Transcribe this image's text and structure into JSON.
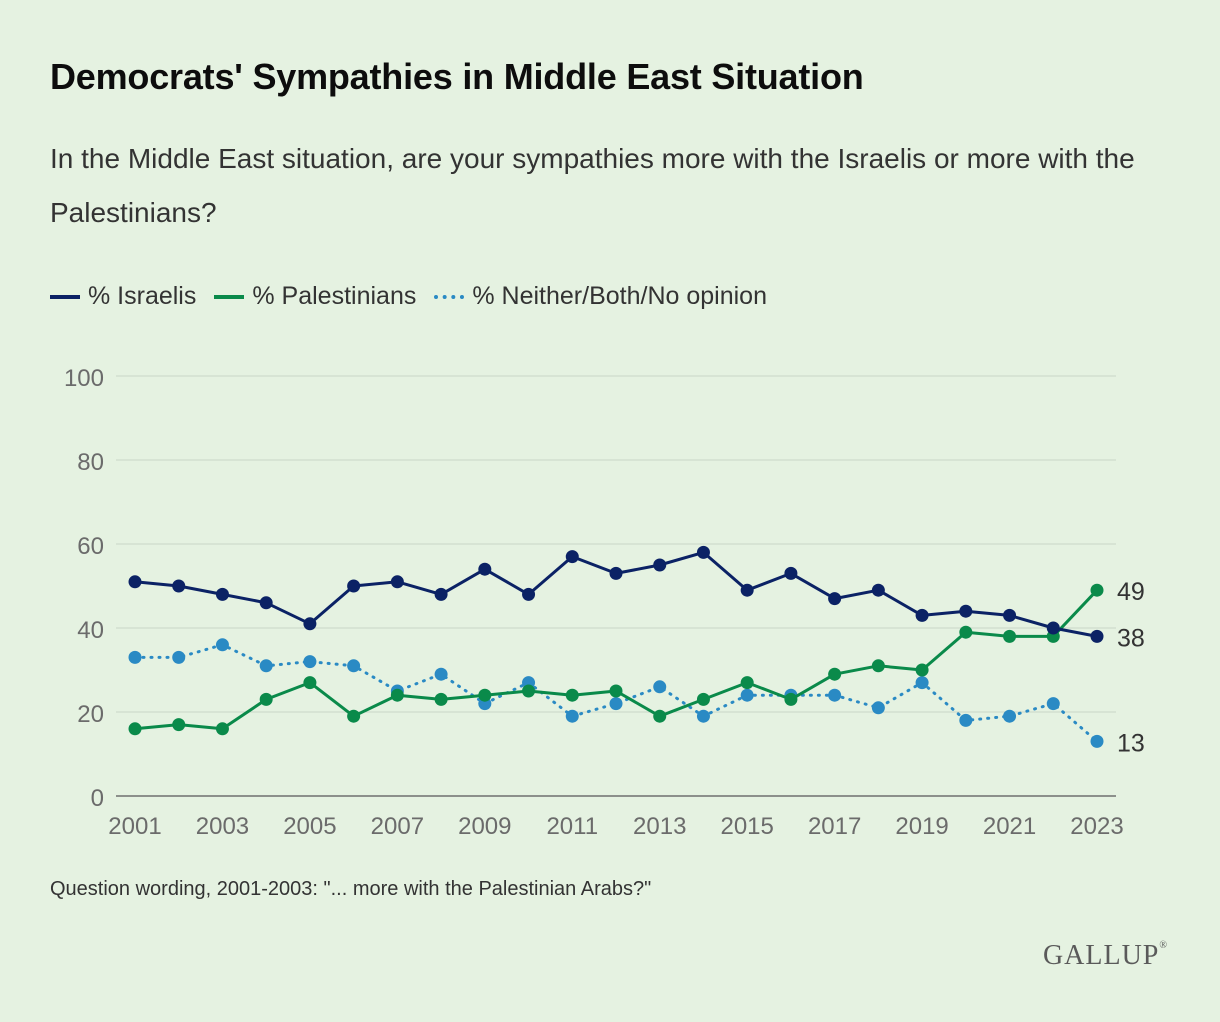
{
  "header": {
    "title": "Democrats' Sympathies in Middle East Situation",
    "subtitle": "In the Middle East situation, are your sympathies more with the Israelis or more with the Palestinians?"
  },
  "footer": {
    "note": "Question wording, 2001-2003: \"... more with the Palestinian Arabs?\"",
    "logo": "GALLUP"
  },
  "chart_data": {
    "type": "line",
    "x": [
      2001,
      2002,
      2003,
      2004,
      2005,
      2006,
      2007,
      2008,
      2009,
      2010,
      2011,
      2012,
      2013,
      2014,
      2015,
      2016,
      2017,
      2018,
      2019,
      2020,
      2021,
      2022,
      2023
    ],
    "x_tick_labels": [
      "2001",
      "2003",
      "2005",
      "2007",
      "2009",
      "2011",
      "2013",
      "2015",
      "2017",
      "2019",
      "2021",
      "2023"
    ],
    "y_tick_labels": [
      "0",
      "20",
      "40",
      "60",
      "80",
      "100"
    ],
    "ylim": [
      0,
      100
    ],
    "grid": true,
    "legend_position": "top-left",
    "series": [
      {
        "name": "% Israelis",
        "color": "#0b2265",
        "style": "solid",
        "values": [
          51,
          50,
          48,
          46,
          41,
          50,
          51,
          48,
          54,
          48,
          57,
          53,
          55,
          58,
          49,
          53,
          47,
          49,
          43,
          44,
          43,
          40,
          38
        ],
        "end_label": "38"
      },
      {
        "name": "% Palestinians",
        "color": "#0a8a4a",
        "style": "solid",
        "values": [
          16,
          17,
          16,
          23,
          27,
          19,
          24,
          23,
          24,
          25,
          24,
          25,
          19,
          23,
          27,
          23,
          29,
          31,
          30,
          39,
          38,
          38,
          49
        ],
        "end_label": "49"
      },
      {
        "name": "% Neither/Both/No opinion",
        "color": "#2a8ac4",
        "style": "dotted",
        "values": [
          33,
          33,
          36,
          31,
          32,
          31,
          25,
          29,
          22,
          27,
          19,
          22,
          26,
          19,
          24,
          24,
          24,
          21,
          27,
          18,
          19,
          22,
          13
        ],
        "end_label": "13"
      }
    ]
  }
}
